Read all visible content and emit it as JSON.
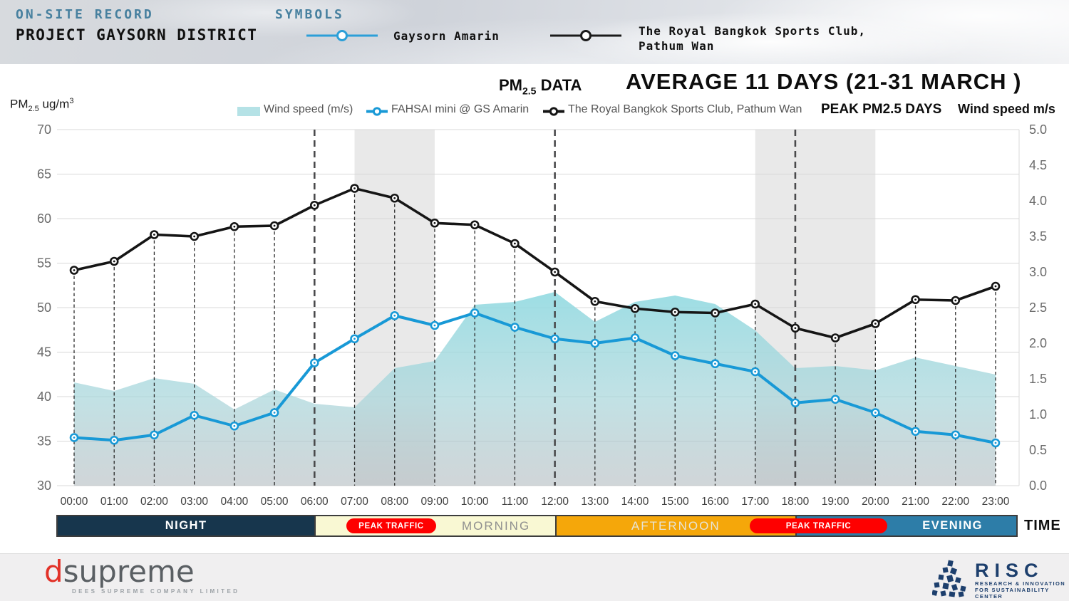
{
  "header": {
    "record_label": "ON-SITE RECORD",
    "project_title": "PROJECT GAYSORN DISTRICT",
    "symbols_title": "SYMBOLS",
    "symbols": [
      {
        "label": "Gaysorn Amarin",
        "color": "#2b9fd8"
      },
      {
        "label_line1": "The Royal Bangkok Sports Club,",
        "label_line2": "Pathum Wan",
        "color": "#1a1a1a"
      }
    ]
  },
  "chart_header": {
    "pm_base": "PM",
    "pm_sub": "2.5",
    "pm_rest": " DATA",
    "title": "AVERAGE 11 DAYS (21-31 MARCH )",
    "axis_pm_base": "PM",
    "axis_pm_sub": "2.5",
    "axis_pm_unit": " ug/m",
    "axis_pm_sup": "3",
    "peak_label": "PEAK PM2.5 DAYS",
    "wind_axis_label": "Wind speed m/s",
    "time_axis_label": "TIME",
    "legend": [
      {
        "label": "Wind speed (m/s)",
        "swatch_color": "#b5e2e6"
      },
      {
        "label": "FAHSAI mini @ GS Amarin",
        "color": "#1899d6"
      },
      {
        "label": "The Royal Bangkok Sports Club, Pathum Wan",
        "color": "#1a1a1a"
      }
    ]
  },
  "chart_data": {
    "type": "line+area",
    "x": [
      "00:00",
      "01:00",
      "02:00",
      "03:00",
      "04:00",
      "05:00",
      "06:00",
      "07:00",
      "08:00",
      "09:00",
      "10:00",
      "11:00",
      "12:00",
      "13:00",
      "14:00",
      "15:00",
      "16:00",
      "17:00",
      "18:00",
      "19:00",
      "20:00",
      "21:00",
      "22:00",
      "23:00"
    ],
    "series": [
      {
        "name": "Wind speed (m/s)",
        "type": "area",
        "axis": "right",
        "color": "#9edde3",
        "values": [
          1.45,
          1.33,
          1.51,
          1.43,
          1.07,
          1.35,
          1.15,
          1.1,
          1.65,
          1.75,
          2.54,
          2.58,
          2.72,
          2.3,
          2.58,
          2.67,
          2.55,
          2.18,
          1.65,
          1.68,
          1.62,
          1.8,
          1.68,
          1.56
        ]
      },
      {
        "name": "FAHSAI mini @ GS Amarin",
        "type": "line",
        "axis": "left",
        "color": "#1899d6",
        "values": [
          35.4,
          35.1,
          35.7,
          37.9,
          36.7,
          38.2,
          43.8,
          46.5,
          49.1,
          48.0,
          49.4,
          47.8,
          46.5,
          46.0,
          46.6,
          44.6,
          43.7,
          42.8,
          39.3,
          39.7,
          38.2,
          36.1,
          35.7,
          34.8
        ]
      },
      {
        "name": "The Royal Bangkok Sports Club, Pathum Wan",
        "type": "line",
        "axis": "left",
        "color": "#151515",
        "values": [
          54.2,
          55.2,
          58.2,
          58.0,
          59.1,
          59.2,
          61.5,
          63.4,
          62.3,
          59.5,
          59.3,
          57.2,
          54.0,
          50.7,
          49.9,
          49.5,
          49.4,
          50.4,
          47.7,
          46.6,
          48.2,
          50.9,
          50.8,
          52.4
        ]
      }
    ],
    "left_axis": {
      "min": 30,
      "max": 70,
      "step": 5,
      "ticks": [
        "70",
        "65",
        "60",
        "55",
        "50",
        "45",
        "40",
        "35",
        "30"
      ]
    },
    "right_axis": {
      "min": 0.0,
      "max": 5.0,
      "step": 0.5,
      "ticks": [
        "5.0",
        "4.5",
        "4.0",
        "3.5",
        "3.0",
        "2.5",
        "2.0",
        "1.5",
        "1.0",
        "0.5",
        "0.0"
      ]
    },
    "grid": true,
    "highlight_bands": [
      {
        "from_hour": 7,
        "to_hour": 9,
        "color": "#e9e9e9"
      },
      {
        "from_hour": 17,
        "to_hour": 20,
        "color": "#e9e9e9"
      }
    ],
    "bold_dash_hours": [
      6,
      12,
      18
    ],
    "time_bands": [
      {
        "label": "NIGHT",
        "from_hour": 0,
        "to_hour": 6,
        "bg": "#17364d",
        "text_color": "#ffffff",
        "bold": true
      },
      {
        "label": "MORNING",
        "from_hour": 6,
        "to_hour": 12,
        "bg": "#f9f8d3",
        "text_color": "#8f8f8f",
        "bold": false
      },
      {
        "label": "AFTERNOON",
        "from_hour": 12,
        "to_hour": 18,
        "bg": "#f5a70a",
        "text_color": "#e7e4d6",
        "bold": false
      },
      {
        "label": "EVENING",
        "from_hour": 18,
        "to_hour": 23,
        "bg": "#2d7da8",
        "text_color": "#ffffff",
        "bold": true
      }
    ],
    "peak_traffic_pills": [
      {
        "label": "PEAK TRAFFIC",
        "from_hour": 6.8,
        "to_hour": 9.03,
        "bg": "#fe0000"
      },
      {
        "label": "PEAK TRAFFIC",
        "from_hour": 16.86,
        "to_hour": 20.3,
        "bg": "#fe0000"
      }
    ]
  },
  "footer": {
    "dsupreme": {
      "d": "d",
      "rest": "supreme",
      "subtext": "DEES SUPREME COMPANY LIMITED",
      "red": "#e23128",
      "gray": "#5a5f63"
    },
    "risc": {
      "name": "RISC",
      "line1": "RESEARCH & INNOVATION",
      "line2": "FOR SUSTAINABILITY CENTER",
      "navy": "#1d3f6d"
    }
  }
}
